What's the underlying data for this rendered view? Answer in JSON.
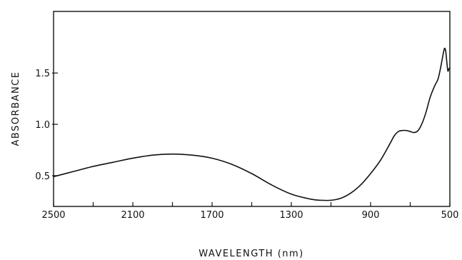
{
  "chart_data": {
    "type": "line",
    "title": "",
    "xlabel": "WAVELENGTH (nm)",
    "ylabel": "ABSORBANCE",
    "xlim": [
      2500,
      500
    ],
    "ylim": [
      0.2,
      2.1
    ],
    "x_ticks": [
      2500,
      2300,
      2100,
      1900,
      1700,
      1500,
      1300,
      1100,
      900,
      700,
      500
    ],
    "x_tick_labels": [
      "2500",
      "2100",
      "1700",
      "1300",
      "900",
      "500"
    ],
    "y_ticks": [
      0.5,
      1.0,
      1.5
    ],
    "y_tick_labels": [
      "0.5",
      "1.0",
      "1.5"
    ],
    "grid": false,
    "legend": "none",
    "line_color": "#111111",
    "series": [
      {
        "x": [
          2500,
          2400,
          2300,
          2200,
          2100,
          2000,
          1900,
          1800,
          1700,
          1600,
          1500,
          1400,
          1300,
          1200,
          1150,
          1100,
          1050,
          1000,
          950,
          900,
          850,
          800,
          780,
          760,
          740,
          720,
          700,
          680,
          660,
          640,
          620,
          600,
          580,
          570,
          560,
          550,
          540,
          530,
          525,
          520,
          515,
          510,
          505,
          500
        ],
        "y": [
          0.49,
          0.54,
          0.59,
          0.63,
          0.67,
          0.7,
          0.71,
          0.7,
          0.67,
          0.61,
          0.52,
          0.41,
          0.32,
          0.27,
          0.26,
          0.26,
          0.28,
          0.33,
          0.41,
          0.52,
          0.65,
          0.82,
          0.89,
          0.93,
          0.94,
          0.94,
          0.93,
          0.92,
          0.94,
          1.01,
          1.12,
          1.26,
          1.36,
          1.4,
          1.44,
          1.52,
          1.62,
          1.72,
          1.74,
          1.7,
          1.6,
          1.52,
          1.54,
          1.55
        ]
      }
    ]
  }
}
